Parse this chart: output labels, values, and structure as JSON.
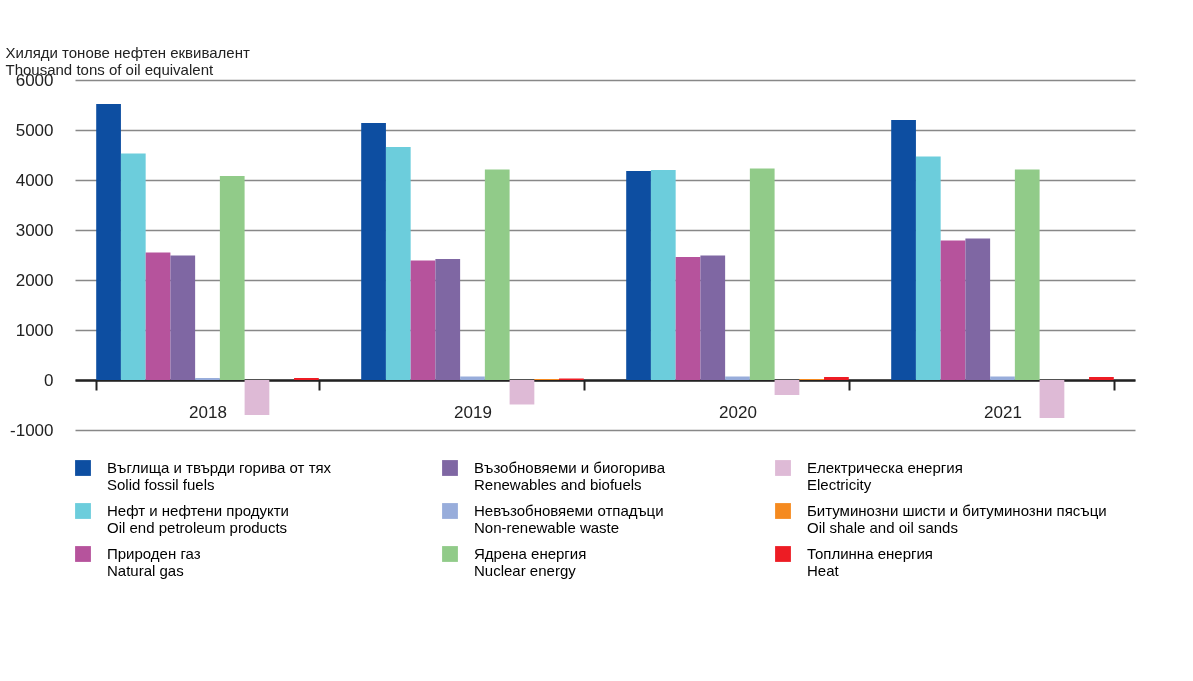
{
  "chart_data": {
    "type": "bar",
    "ylabel": "Хиляди тонове нефтен еквивалент\nThousand tons of oil equivalent",
    "categories": [
      "2018",
      "2019",
      "2020",
      "2021"
    ],
    "series": [
      {
        "name": "Въглища и твърди горива от тях\nSolid fossil fuels",
        "color": "#0d4ea1",
        "values": [
          5520,
          5140,
          4180,
          5200
        ]
      },
      {
        "name": "Нефт и нефтени продукти\nOil end petroleum products",
        "color": "#6ccddc",
        "values": [
          4530,
          4660,
          4200,
          4470
        ]
      },
      {
        "name": "Природен газ\nNatural gas",
        "color": "#b6539c",
        "values": [
          2550,
          2390,
          2460,
          2790
        ]
      },
      {
        "name": "Възобновяеми и биогорива\nRenewables and biofuels",
        "color": "#7f67a3",
        "values": [
          2490,
          2420,
          2490,
          2830
        ]
      },
      {
        "name": "Невъзобновяеми отпадъци\nNon-renewable waste",
        "color": "#98addb",
        "values": [
          40,
          70,
          70,
          70
        ]
      },
      {
        "name": "Ядрена енергия\nNuclear energy",
        "color": "#91cb89",
        "values": [
          4080,
          4210,
          4230,
          4210
        ]
      },
      {
        "name": "Електрическа енергия\nElectricity",
        "color": "#debad6",
        "values": [
          -700,
          -490,
          -300,
          -760
        ]
      },
      {
        "name": "Битуминозни шисти  и битуминозни пясъци\nOil shale and oil sands",
        "color": "#f58a1f",
        "values": [
          null,
          20,
          20,
          null
        ]
      },
      {
        "name": "Топлинна енергия\nHeat",
        "color": "#ed1c24",
        "values": [
          40,
          30,
          60,
          60
        ]
      }
    ],
    "ylim": [
      -1000,
      6000
    ],
    "yticks": [
      -1000,
      0,
      1000,
      2000,
      3000,
      4000,
      5000,
      6000
    ],
    "grid": "y",
    "legend": "bottom"
  }
}
